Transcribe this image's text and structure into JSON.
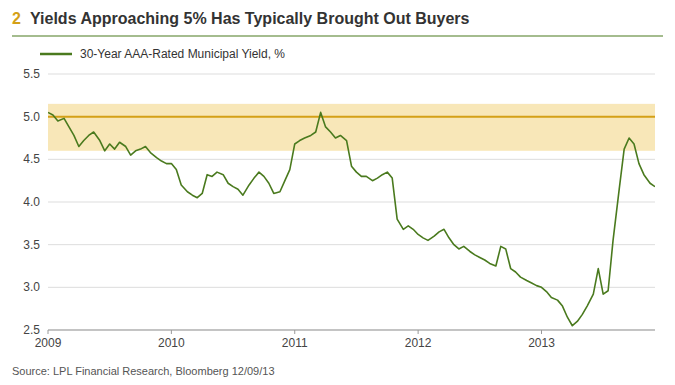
{
  "chart_data": {
    "type": "line",
    "title": "Yields Approaching 5% Has Typically Brought Out Buyers",
    "annotations": [
      {
        "text": "2",
        "color": "#d4a017"
      },
      {
        "text": "Source: LPL Financial Research, Bloomberg   12/09/13"
      }
    ],
    "x": [
      2009.0,
      2009.04,
      2009.08,
      2009.13,
      2009.17,
      2009.21,
      2009.25,
      2009.29,
      2009.33,
      2009.37,
      2009.42,
      2009.46,
      2009.5,
      2009.54,
      2009.58,
      2009.63,
      2009.67,
      2009.71,
      2009.75,
      2009.79,
      2009.83,
      2009.88,
      2009.92,
      2009.96,
      2010.0,
      2010.04,
      2010.08,
      2010.13,
      2010.17,
      2010.21,
      2010.25,
      2010.29,
      2010.33,
      2010.37,
      2010.42,
      2010.46,
      2010.5,
      2010.54,
      2010.58,
      2010.63,
      2010.67,
      2010.71,
      2010.75,
      2010.79,
      2010.83,
      2010.88,
      2010.92,
      2010.96,
      2011.0,
      2011.04,
      2011.08,
      2011.13,
      2011.17,
      2011.21,
      2011.25,
      2011.29,
      2011.33,
      2011.37,
      2011.42,
      2011.46,
      2011.5,
      2011.54,
      2011.58,
      2011.63,
      2011.67,
      2011.71,
      2011.75,
      2011.79,
      2011.83,
      2011.88,
      2011.92,
      2011.96,
      2012.0,
      2012.04,
      2012.08,
      2012.13,
      2012.17,
      2012.21,
      2012.25,
      2012.29,
      2012.33,
      2012.37,
      2012.42,
      2012.46,
      2012.5,
      2012.54,
      2012.58,
      2012.63,
      2012.67,
      2012.71,
      2012.75,
      2012.79,
      2012.83,
      2012.88,
      2012.92,
      2012.96,
      2013.0,
      2013.04,
      2013.08,
      2013.13,
      2013.17,
      2013.21,
      2013.25,
      2013.29,
      2013.33,
      2013.37,
      2013.42,
      2013.46,
      2013.5,
      2013.54,
      2013.58,
      2013.63,
      2013.67,
      2013.71,
      2013.75,
      2013.79,
      2013.83,
      2013.88,
      2013.92
    ],
    "series": [
      {
        "name": "30-Year AAA-Rated Municipal Yield, %",
        "color": "#4a7a1e",
        "values": [
          5.05,
          5.02,
          4.95,
          4.98,
          4.88,
          4.78,
          4.65,
          4.72,
          4.78,
          4.82,
          4.72,
          4.6,
          4.68,
          4.62,
          4.7,
          4.65,
          4.55,
          4.6,
          4.62,
          4.65,
          4.58,
          4.52,
          4.48,
          4.45,
          4.45,
          4.38,
          4.2,
          4.12,
          4.08,
          4.05,
          4.1,
          4.32,
          4.3,
          4.35,
          4.32,
          4.22,
          4.18,
          4.15,
          4.08,
          4.2,
          4.28,
          4.35,
          4.3,
          4.22,
          4.1,
          4.12,
          4.25,
          4.38,
          4.68,
          4.72,
          4.75,
          4.78,
          4.82,
          5.05,
          4.88,
          4.82,
          4.75,
          4.78,
          4.72,
          4.42,
          4.35,
          4.3,
          4.3,
          4.25,
          4.28,
          4.32,
          4.35,
          4.28,
          3.8,
          3.68,
          3.72,
          3.68,
          3.62,
          3.58,
          3.55,
          3.6,
          3.65,
          3.68,
          3.58,
          3.5,
          3.45,
          3.48,
          3.42,
          3.38,
          3.35,
          3.32,
          3.28,
          3.25,
          3.48,
          3.45,
          3.22,
          3.18,
          3.12,
          3.08,
          3.05,
          3.02,
          3.0,
          2.95,
          2.88,
          2.85,
          2.78,
          2.65,
          2.55,
          2.6,
          2.68,
          2.78,
          2.92,
          3.22,
          2.92,
          2.96,
          3.55,
          4.15,
          4.62,
          4.75,
          4.68,
          4.45,
          4.32,
          4.22,
          4.18
        ]
      }
    ],
    "reference_line": {
      "value": 5.0,
      "color": "#d4a017"
    },
    "band": {
      "from": 4.6,
      "to": 5.15,
      "color": "#f5dfa0"
    },
    "xlim": [
      2009.0,
      2013.92
    ],
    "xticks": [
      2009,
      2010,
      2011,
      2012,
      2013
    ],
    "ylim": [
      2.5,
      5.5
    ],
    "yticks": [
      2.5,
      {
        "value": 3,
        "label": "3.0"
      },
      3.5,
      {
        "value": 4,
        "label": "4.0"
      },
      4.5,
      {
        "value": 5,
        "label": "5.0"
      },
      5.5
    ],
    "grid": true,
    "legend": "top"
  }
}
